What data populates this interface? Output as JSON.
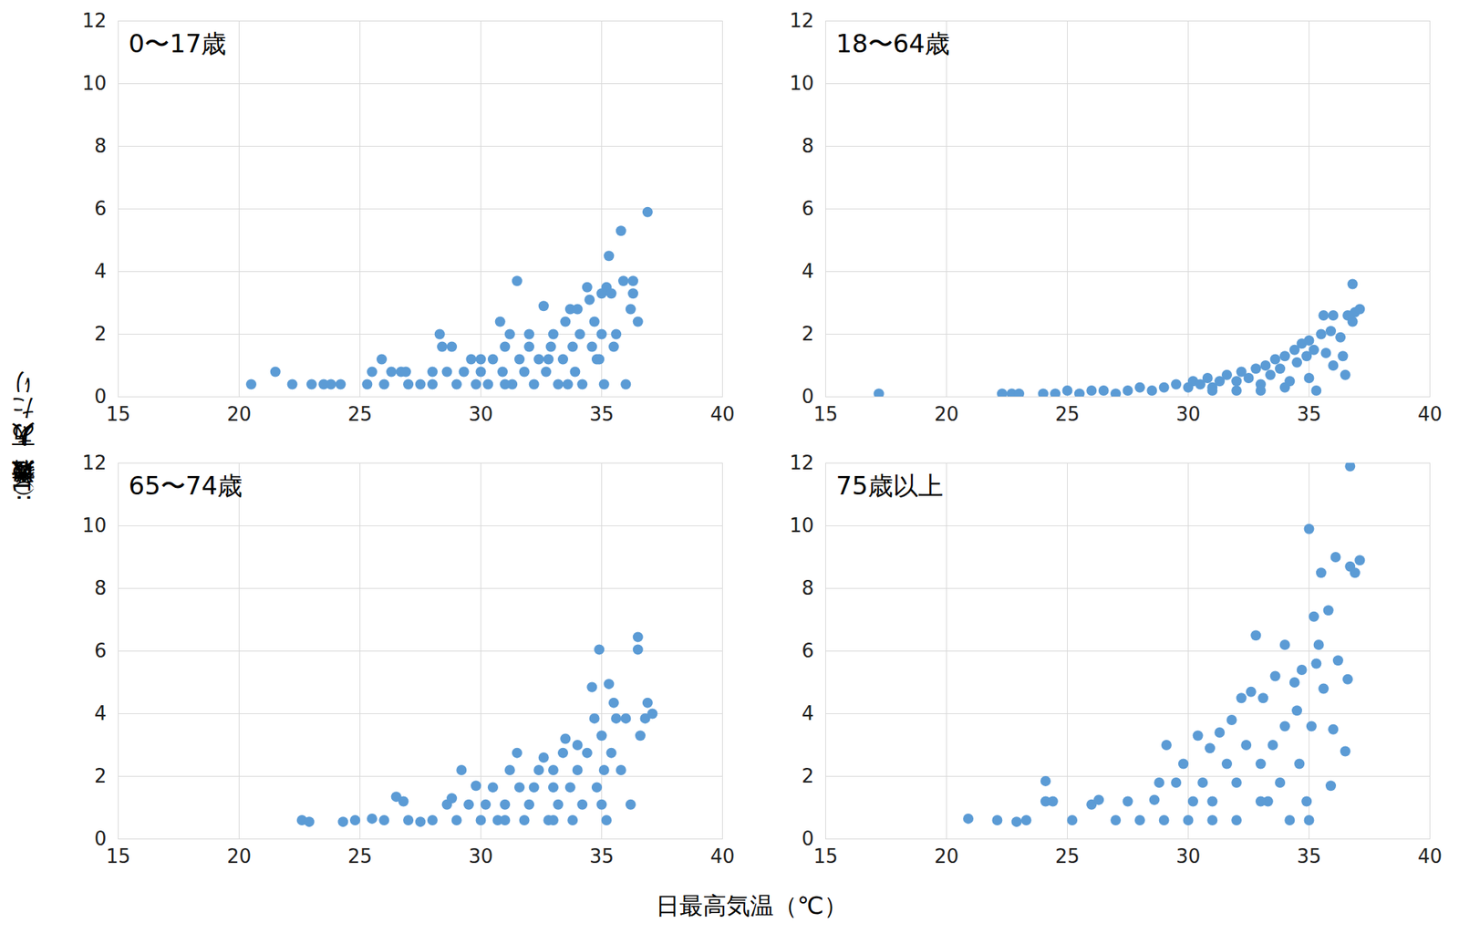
{
  "y_label": "搬送者数（人）:10万人あたり",
  "x_label": "日最高気温（℃）",
  "chart_data": [
    {
      "type": "scatter",
      "title": "0〜17歳",
      "color": "#5B9BD5",
      "grid": true,
      "xlim": [
        15,
        40
      ],
      "xticks": [
        15,
        20,
        25,
        30,
        35,
        40
      ],
      "ylim": [
        0,
        12
      ],
      "yticks": [
        0,
        2,
        4,
        6,
        8,
        10,
        12
      ],
      "x": [
        20.5,
        21.5,
        22.2,
        23,
        23.5,
        23.8,
        24.2,
        25.3,
        25.5,
        25.9,
        26,
        26.3,
        26.7,
        26.9,
        27,
        27.5,
        28,
        28,
        28.3,
        28.4,
        28.6,
        28.8,
        29,
        29.3,
        29.6,
        29.8,
        30,
        30,
        30.3,
        30.5,
        30.8,
        30.9,
        31,
        31.2,
        31.3,
        31.5,
        31.6,
        31.8,
        32,
        32,
        32.2,
        32.4,
        32.6,
        32.7,
        32.9,
        33,
        33.2,
        33.4,
        33.5,
        33.7,
        33.8,
        33.9,
        34,
        34.1,
        34.2,
        34.4,
        34.5,
        34.6,
        34.7,
        34.9,
        35,
        35,
        35.1,
        35.2,
        35.3,
        35.4,
        35.5,
        35.6,
        35.8,
        35.9,
        36,
        36.2,
        36.3,
        36.3,
        36.5,
        36.9,
        33.6,
        31,
        34.8,
        32.8
      ],
      "values": [
        0.4,
        0.8,
        0.4,
        0.4,
        0.4,
        0.4,
        0.4,
        0.4,
        0.8,
        1.2,
        0.4,
        0.8,
        0.8,
        0.8,
        0.4,
        0.4,
        0.4,
        0.8,
        2.0,
        1.6,
        0.8,
        1.6,
        0.4,
        0.8,
        1.2,
        0.4,
        1.2,
        0.8,
        0.4,
        1.2,
        2.4,
        0.8,
        1.6,
        2.0,
        0.4,
        3.7,
        1.2,
        0.8,
        1.6,
        2.0,
        0.4,
        1.2,
        2.9,
        0.8,
        1.6,
        2.0,
        0.4,
        1.2,
        2.4,
        2.8,
        1.6,
        0.8,
        2.8,
        2.0,
        0.4,
        3.5,
        3.1,
        1.6,
        2.4,
        1.2,
        3.3,
        2.0,
        0.4,
        3.5,
        4.5,
        3.3,
        1.6,
        2.0,
        5.3,
        3.7,
        0.4,
        2.8,
        3.7,
        3.3,
        2.4,
        5.9,
        0.4,
        0.4,
        1.2,
        1.2
      ]
    },
    {
      "type": "scatter",
      "title": "18〜64歳",
      "color": "#5B9BD5",
      "grid": true,
      "xlim": [
        15,
        40
      ],
      "xticks": [
        15,
        20,
        25,
        30,
        35,
        40
      ],
      "ylim": [
        0,
        12
      ],
      "yticks": [
        0,
        2,
        4,
        6,
        8,
        10,
        12
      ],
      "x": [
        17.2,
        22.3,
        22.7,
        23,
        24,
        24.5,
        25,
        25.5,
        26,
        26.5,
        27,
        27.5,
        28,
        28.5,
        29,
        29.5,
        30,
        30.2,
        30.5,
        30.8,
        31,
        31.3,
        31.6,
        32,
        32.2,
        32.5,
        32.8,
        33,
        33.2,
        33.4,
        33.6,
        33.8,
        34,
        34.2,
        34.4,
        34.5,
        34.7,
        34.9,
        35,
        35,
        35.2,
        35.3,
        35.5,
        35.7,
        35.9,
        36,
        36,
        36.3,
        36.5,
        36.6,
        36.8,
        36.9,
        37.1,
        36.8,
        35.6,
        36.4,
        34,
        32,
        31,
        33
      ],
      "values": [
        0.1,
        0.1,
        0.1,
        0.1,
        0.1,
        0.1,
        0.2,
        0.1,
        0.2,
        0.2,
        0.1,
        0.2,
        0.3,
        0.2,
        0.3,
        0.4,
        0.3,
        0.5,
        0.4,
        0.6,
        0.3,
        0.5,
        0.7,
        0.5,
        0.8,
        0.6,
        0.9,
        0.4,
        1.0,
        0.7,
        1.2,
        0.9,
        1.3,
        0.5,
        1.5,
        1.1,
        1.7,
        1.3,
        1.8,
        0.6,
        1.5,
        0.2,
        2.0,
        1.4,
        2.1,
        2.6,
        1.0,
        1.9,
        0.7,
        2.6,
        2.4,
        2.7,
        2.8,
        3.6,
        2.6,
        1.3,
        0.3,
        0.2,
        0.2,
        0.2
      ]
    },
    {
      "type": "scatter",
      "title": "65〜74歳",
      "color": "#5B9BD5",
      "grid": true,
      "xlim": [
        15,
        40
      ],
      "xticks": [
        15,
        20,
        25,
        30,
        35,
        40
      ],
      "ylim": [
        0,
        12
      ],
      "yticks": [
        0,
        2,
        4,
        6,
        8,
        10,
        12
      ],
      "x": [
        22.6,
        22.9,
        24.3,
        24.8,
        25.5,
        26,
        26.5,
        26.8,
        27,
        27.5,
        28,
        28.6,
        28.8,
        29,
        29.2,
        29.5,
        29.8,
        30,
        30.2,
        30.5,
        30.7,
        31,
        31.2,
        31.5,
        31.6,
        31.8,
        32,
        32.2,
        32.4,
        32.6,
        32.8,
        33,
        33,
        33.2,
        33.4,
        33.5,
        33.7,
        33.8,
        34,
        34,
        34.2,
        34.4,
        34.6,
        34.7,
        34.8,
        34.9,
        35,
        35.1,
        35.2,
        35.3,
        35.4,
        35.5,
        35.6,
        35.8,
        36,
        36.2,
        36.5,
        36.5,
        36.6,
        36.8,
        36.9,
        37.1,
        35,
        33,
        31
      ],
      "values": [
        0.6,
        0.55,
        0.55,
        0.6,
        0.65,
        0.6,
        1.35,
        1.2,
        0.6,
        0.55,
        0.6,
        1.1,
        1.3,
        0.6,
        2.2,
        1.1,
        1.7,
        0.6,
        1.1,
        1.65,
        0.6,
        1.1,
        2.2,
        2.75,
        1.65,
        0.6,
        1.1,
        1.65,
        2.2,
        2.6,
        0.6,
        1.65,
        2.2,
        1.1,
        2.75,
        3.2,
        1.65,
        0.6,
        2.2,
        3.0,
        1.1,
        2.75,
        4.85,
        3.85,
        1.65,
        6.05,
        3.3,
        2.2,
        0.6,
        4.95,
        2.75,
        4.35,
        3.85,
        2.2,
        3.85,
        1.1,
        6.45,
        6.05,
        3.3,
        3.85,
        4.35,
        4.0,
        1.1,
        0.6,
        0.6
      ]
    },
    {
      "type": "scatter",
      "title": "75歳以上",
      "color": "#5B9BD5",
      "grid": true,
      "xlim": [
        15,
        40
      ],
      "xticks": [
        15,
        20,
        25,
        30,
        35,
        40
      ],
      "ylim": [
        0,
        12
      ],
      "yticks": [
        0,
        2,
        4,
        6,
        8,
        10,
        12
      ],
      "x": [
        20.9,
        22.1,
        22.9,
        23.3,
        24.1,
        24.1,
        24.4,
        25.2,
        26,
        26.3,
        27,
        27.5,
        28,
        28.6,
        28.8,
        29.1,
        29.5,
        29.8,
        30,
        30.2,
        30.4,
        30.6,
        30.9,
        31,
        31.3,
        31.6,
        31.8,
        32,
        32,
        32.2,
        32.4,
        32.6,
        32.8,
        33,
        33.1,
        33.3,
        33.5,
        33.6,
        33.8,
        34,
        34,
        34.2,
        34.4,
        34.5,
        34.6,
        34.7,
        34.9,
        35,
        35.1,
        35.2,
        35.3,
        35.4,
        35.5,
        35.6,
        35.8,
        36,
        36.1,
        36.2,
        36.5,
        36.6,
        36.7,
        36.7,
        36.9,
        37.1,
        35.9,
        33,
        31,
        29,
        35
      ],
      "values": [
        0.65,
        0.6,
        0.55,
        0.6,
        1.85,
        1.2,
        1.2,
        0.6,
        1.1,
        1.25,
        0.6,
        1.2,
        0.6,
        1.25,
        1.8,
        3.0,
        1.8,
        2.4,
        0.6,
        1.2,
        3.3,
        1.8,
        2.9,
        1.2,
        3.4,
        2.4,
        3.8,
        0.6,
        1.8,
        4.5,
        3.0,
        4.7,
        6.5,
        2.4,
        4.5,
        1.2,
        3.0,
        5.2,
        1.8,
        3.6,
        6.2,
        0.6,
        5.0,
        4.1,
        2.4,
        5.4,
        1.2,
        9.9,
        3.6,
        7.1,
        5.6,
        6.2,
        8.5,
        4.8,
        7.3,
        3.5,
        9.0,
        5.7,
        2.8,
        5.1,
        8.7,
        11.9,
        8.5,
        8.9,
        1.7,
        1.2,
        0.6,
        0.6,
        0.6
      ]
    }
  ]
}
